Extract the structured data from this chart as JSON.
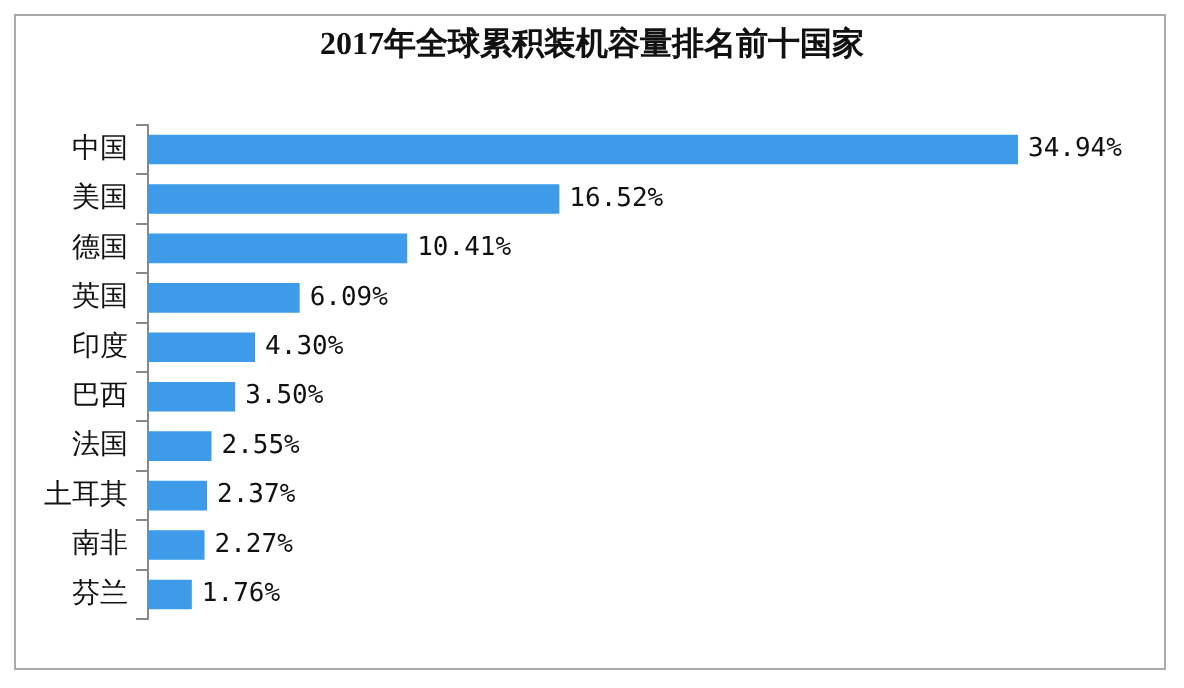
{
  "chart_data": {
    "type": "bar",
    "orientation": "horizontal",
    "title": "2017年全球累积装机容量排名前十国家",
    "categories": [
      "中国",
      "美国",
      "德国",
      "英国",
      "印度",
      "巴西",
      "法国",
      "土耳其",
      "南非",
      "芬兰"
    ],
    "values": [
      34.94,
      16.52,
      10.41,
      6.09,
      4.3,
      3.5,
      2.55,
      2.37,
      2.27,
      1.76
    ],
    "value_labels": [
      "34.94%",
      "16.52%",
      "10.41%",
      "6.09%",
      "4.30%",
      "3.50%",
      "2.55%",
      "2.37%",
      "2.27%",
      "1.76%"
    ],
    "color": "#3d9be9",
    "grid": false,
    "legend": false,
    "tick_labels": "y"
  }
}
